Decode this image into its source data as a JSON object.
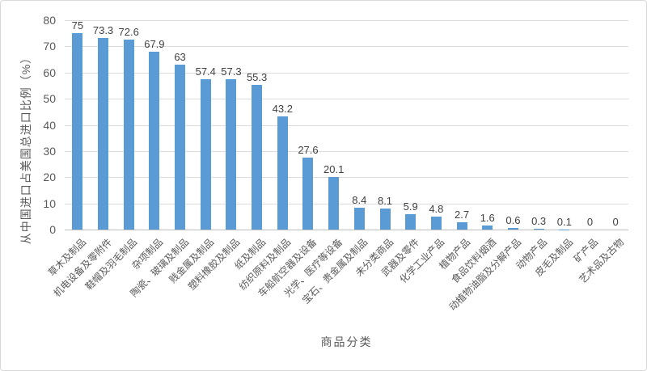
{
  "chart_data": {
    "type": "bar",
    "xlabel": "商品分类",
    "ylabel": "从中国进口占美国总进口比例（%）",
    "categories": [
      "草木及制品",
      "机电设备及零附件",
      "鞋帽及羽毛制品",
      "杂项制品",
      "陶瓷、玻璃及制品",
      "贱金属及制品",
      "塑料橡胶及制品",
      "纸及制品",
      "纺织原料及制品",
      "车船航空器及设备",
      "光学、医疗等设备",
      "宝石、贵金属及制品",
      "未分类商品",
      "武器及零件",
      "化学工业产品",
      "植物产品",
      "食品饮料烟酒",
      "动植物油脂及分解产品",
      "动物产品",
      "皮毛及制品",
      "矿产品",
      "艺术品及古物"
    ],
    "values": [
      75,
      73.3,
      72.6,
      67.9,
      63,
      57.4,
      57.3,
      55.3,
      43.2,
      27.6,
      20.1,
      8.4,
      8.1,
      5.9,
      4.8,
      2.7,
      1.6,
      0.6,
      0.3,
      0.1,
      0,
      0
    ],
    "ylim": [
      0,
      80
    ],
    "yticks": [
      0,
      10,
      20,
      30,
      40,
      50,
      60,
      70,
      80
    ],
    "grid": true,
    "legend": "none",
    "colors": {
      "bar": "#5B9BD5",
      "gridline": "#DCDCDC",
      "axis_line": "#C0C0C0",
      "value_label": "#404040",
      "tick_label": "#595959",
      "axis_title": "#595959",
      "background": "#FFFFFF",
      "border": "#D9D9D9"
    }
  }
}
